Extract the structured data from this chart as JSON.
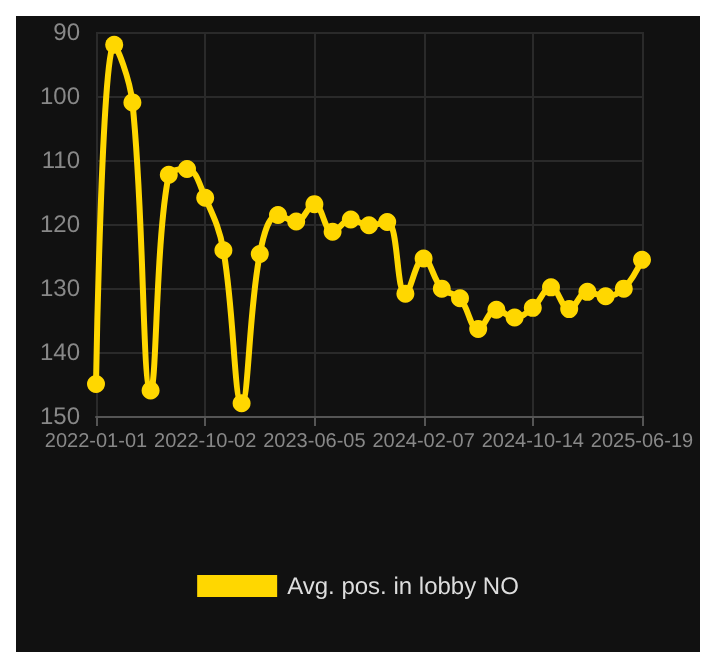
{
  "chart_data": {
    "type": "line",
    "categories": [
      "2022-01-01",
      null,
      null,
      null,
      null,
      null,
      "2022-10-02",
      null,
      null,
      null,
      null,
      null,
      "2023-06-05",
      null,
      null,
      null,
      null,
      null,
      "2024-02-07",
      null,
      null,
      null,
      null,
      null,
      "2024-10-14",
      null,
      null,
      null,
      null,
      null,
      "2025-06-19"
    ],
    "series": [
      {
        "name": "Avg. pos. in lobby NO",
        "color": "#ffd700",
        "values": [
          145,
          92,
          101,
          146,
          112.3,
          111.4,
          115.9,
          124.1,
          148,
          124.7,
          118.6,
          119.6,
          116.9,
          121.2,
          119.3,
          120.2,
          119.7,
          130.9,
          125.4,
          130.1,
          131.6,
          136.4,
          133.4,
          134.6,
          133.1,
          129.9,
          133.3,
          130.6,
          131.3,
          130.1,
          125.6
        ]
      }
    ],
    "ylim": [
      150,
      90
    ],
    "yticks": [
      90,
      100,
      110,
      120,
      130,
      140,
      150
    ],
    "grid": true,
    "legend": "bottom",
    "marker": "circle",
    "line_style": "solid"
  }
}
